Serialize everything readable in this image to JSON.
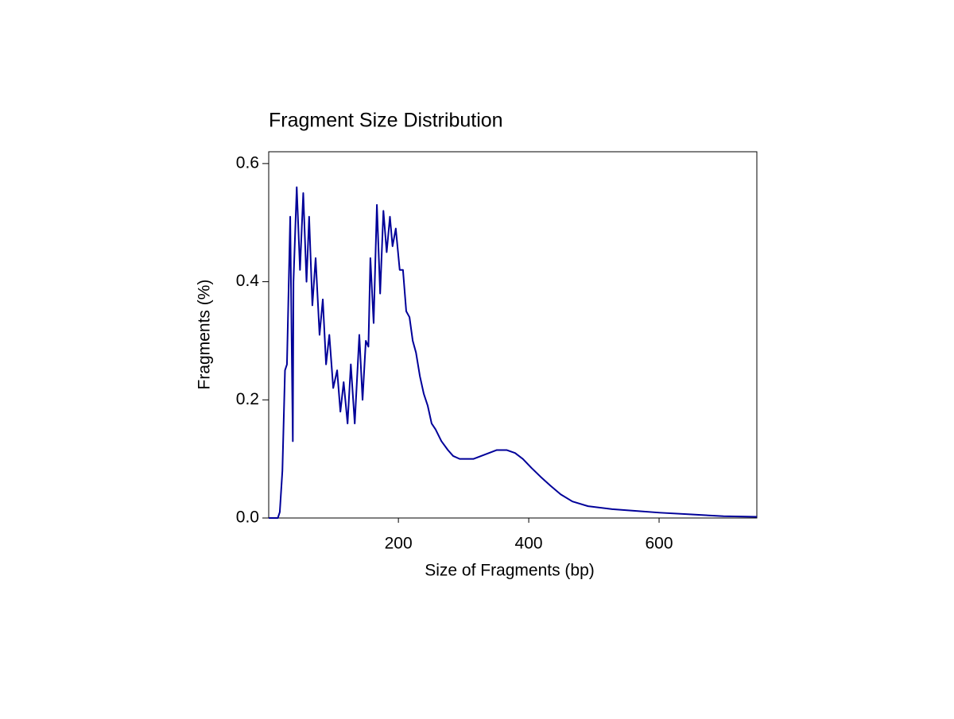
{
  "chart_data": {
    "type": "line",
    "title": "Fragment Size Distribution",
    "x_label": "Size of Fragments (bp)",
    "y_label": "Fragments (%)",
    "x": [
      1,
      15,
      18,
      22,
      26,
      29,
      34,
      38,
      39,
      44,
      49,
      54,
      59,
      63,
      68,
      73,
      79,
      84,
      89,
      94,
      100,
      106,
      111,
      116,
      122,
      127,
      133,
      140,
      145,
      150,
      154,
      157,
      162,
      167,
      172,
      177,
      182,
      187,
      191,
      196,
      202,
      207,
      212,
      217,
      222,
      227,
      233,
      239,
      245,
      251,
      257,
      266,
      276,
      284,
      294,
      302,
      315,
      327,
      339,
      351,
      366,
      379,
      391,
      404,
      418,
      433,
      449,
      467,
      491,
      528,
      565,
      601,
      650,
      699,
      750
    ],
    "series": [
      {
        "name": "Fragments",
        "color": "#000099",
        "values": [
          0,
          0,
          0.01,
          0.08,
          0.25,
          0.26,
          0.51,
          0.13,
          0.4,
          0.56,
          0.42,
          0.55,
          0.4,
          0.51,
          0.36,
          0.44,
          0.31,
          0.37,
          0.26,
          0.31,
          0.22,
          0.25,
          0.18,
          0.23,
          0.16,
          0.26,
          0.16,
          0.31,
          0.2,
          0.3,
          0.29,
          0.44,
          0.33,
          0.53,
          0.38,
          0.52,
          0.45,
          0.51,
          0.46,
          0.49,
          0.42,
          0.42,
          0.35,
          0.34,
          0.3,
          0.28,
          0.24,
          0.21,
          0.19,
          0.16,
          0.15,
          0.13,
          0.115,
          0.105,
          0.1,
          0.1,
          0.1,
          0.105,
          0.11,
          0.115,
          0.115,
          0.11,
          0.1,
          0.085,
          0.07,
          0.055,
          0.04,
          0.028,
          0.02,
          0.015,
          0.012,
          0.009,
          0.006,
          0.003,
          0.002
        ]
      }
    ],
    "xlim": [
      1,
      750
    ],
    "xticks": [
      200,
      400,
      600
    ],
    "ylim": [
      0,
      0.62
    ],
    "yticks": [
      {
        "value": 0,
        "label": "0.0"
      },
      0.2,
      0.4,
      0.6
    ]
  }
}
